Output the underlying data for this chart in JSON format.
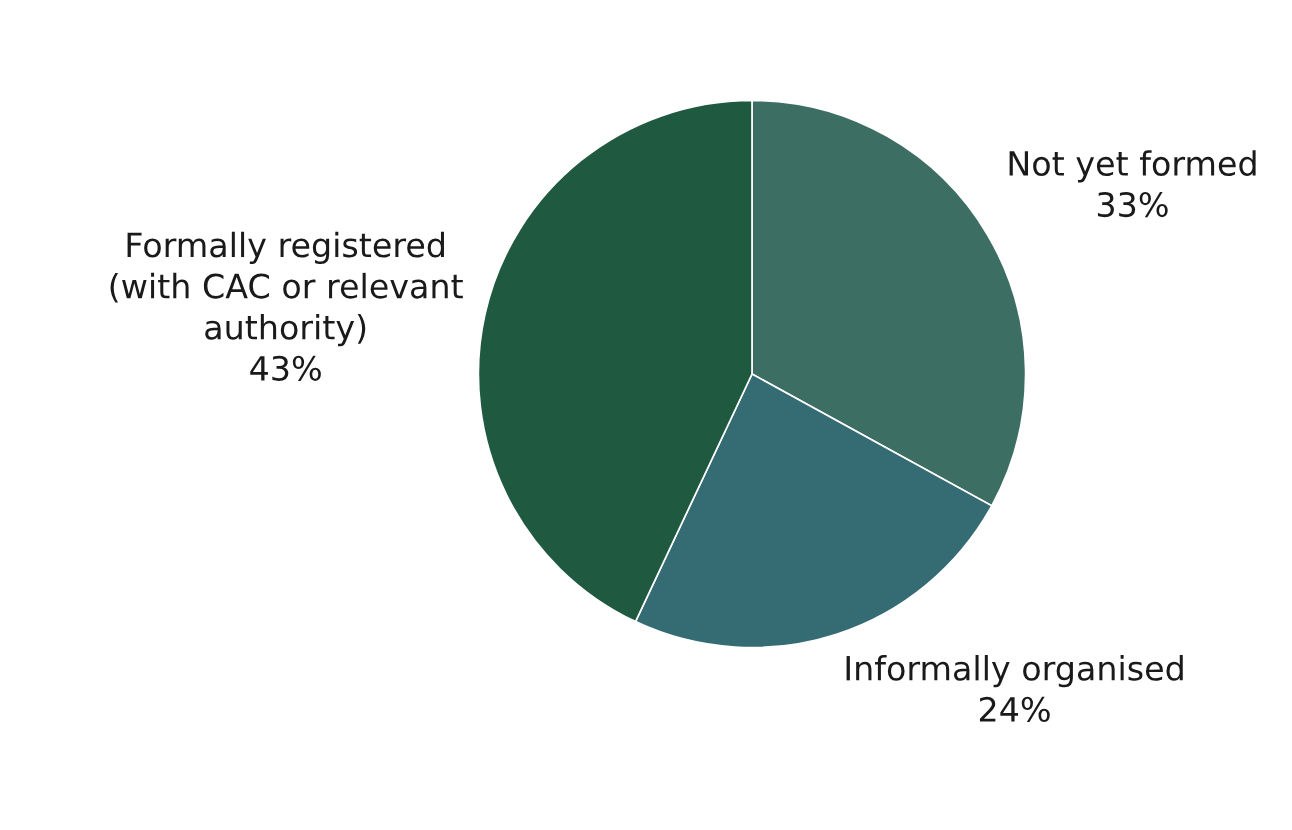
{
  "chart_data": {
    "type": "pie",
    "categories": [
      "Not yet formed",
      "Informally organised",
      "Formally registered\n(with CAC or relevant\nauthority)"
    ],
    "values": [
      33,
      24,
      43
    ],
    "value_labels": [
      "33%",
      "24%",
      "43%"
    ],
    "colors": [
      "#3d6e64",
      "#356b72",
      "#1f5940"
    ]
  }
}
